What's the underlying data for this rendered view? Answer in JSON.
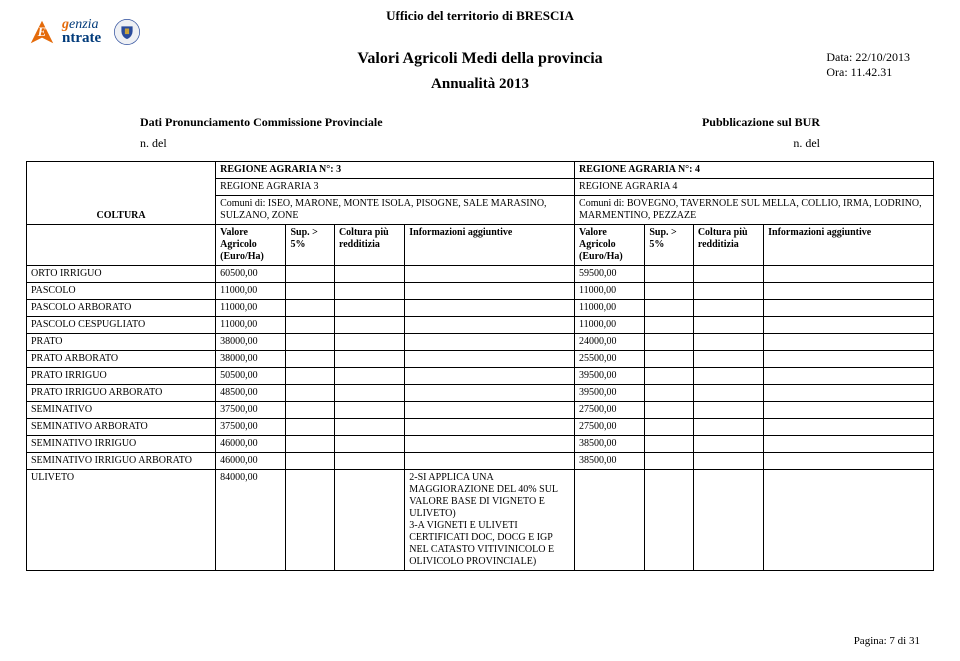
{
  "header": {
    "office": "Ufficio del territorio di  BRESCIA",
    "logo": {
      "line2": "ntrate",
      "prefix_g": "g",
      "prefix_enzia": "enzia",
      "e_icon_letter": "E",
      "alt": "Agenzia Entrate"
    },
    "title": "Valori Agricoli Medi della provincia",
    "date_label": "Data:",
    "date_value": "22/10/2013",
    "time_label": "Ora:",
    "time_value": "11.42.31",
    "subtitle": "Annualità  2013"
  },
  "meta": {
    "left_label": "Dati Pronunciamento Commissione Provinciale",
    "right_label": "Pubblicazione sul BUR",
    "n_del_left": "n. del",
    "n_del_right": "n. del"
  },
  "regions": {
    "left": {
      "num_label": "REGIONE AGRARIA N°:  3",
      "name": "REGIONE AGRARIA 3",
      "comuni": "Comuni di: ISEO, MARONE, MONTE ISOLA, PISOGNE, SALE MARASINO, SULZANO, ZONE"
    },
    "right": {
      "num_label": "REGIONE AGRARIA N°:  4",
      "name": "REGIONE AGRARIA 4",
      "comuni": "Comuni di: BOVEGNO, TAVERNOLE SUL MELLA, COLLIO, IRMA, LODRINO, MARMENTINO, PEZZAZE"
    }
  },
  "columns": {
    "coltura": "COLTURA",
    "valore": "Valore Agricolo (Euro/Ha)",
    "sup": "Sup. > 5%",
    "colt_piu": "Coltura più redditizia",
    "info": "Informazioni aggiuntive"
  },
  "rows": [
    {
      "coltura": "ORTO IRRIGUO",
      "v1": "60500,00",
      "info1": "",
      "v2": "59500,00",
      "info2": ""
    },
    {
      "coltura": "PASCOLO",
      "v1": "11000,00",
      "info1": "",
      "v2": "11000,00",
      "info2": ""
    },
    {
      "coltura": "PASCOLO ARBORATO",
      "v1": "11000,00",
      "info1": "",
      "v2": "11000,00",
      "info2": ""
    },
    {
      "coltura": "PASCOLO CESPUGLIATO",
      "v1": "11000,00",
      "info1": "",
      "v2": "11000,00",
      "info2": ""
    },
    {
      "coltura": "PRATO",
      "v1": "38000,00",
      "info1": "",
      "v2": "24000,00",
      "info2": ""
    },
    {
      "coltura": "PRATO ARBORATO",
      "v1": "38000,00",
      "info1": "",
      "v2": "25500,00",
      "info2": ""
    },
    {
      "coltura": "PRATO IRRIGUO",
      "v1": "50500,00",
      "info1": "",
      "v2": "39500,00",
      "info2": ""
    },
    {
      "coltura": "PRATO IRRIGUO ARBORATO",
      "v1": "48500,00",
      "info1": "",
      "v2": "39500,00",
      "info2": ""
    },
    {
      "coltura": "SEMINATIVO",
      "v1": "37500,00",
      "info1": "",
      "v2": "27500,00",
      "info2": ""
    },
    {
      "coltura": "SEMINATIVO ARBORATO",
      "v1": "37500,00",
      "info1": "",
      "v2": "27500,00",
      "info2": ""
    },
    {
      "coltura": "SEMINATIVO IRRIGUO",
      "v1": "46000,00",
      "info1": "",
      "v2": "38500,00",
      "info2": ""
    },
    {
      "coltura": "SEMINATIVO IRRIGUO ARBORATO",
      "v1": "46000,00",
      "info1": "",
      "v2": "38500,00",
      "info2": ""
    },
    {
      "coltura": "ULIVETO",
      "v1": "84000,00",
      "info1": "2-SI APPLICA UNA MAGGIORAZIONE DEL 40% SUL VALORE BASE DI VIGNETO E ULIVETO)\n3-A VIGNETI E ULIVETI CERTIFICATI DOC, DOCG E IGP NEL CATASTO VITIVINICOLO E OLIVICOLO PROVINCIALE)",
      "v2": "",
      "info2": ""
    }
  ],
  "footer": {
    "page_label": "Pagina: 7 di 31"
  },
  "style": {
    "logo_orange": "#e46a0a",
    "logo_blue": "#003a7a",
    "crest_blue": "#2a4b9b",
    "crest_gold": "#c8a23a",
    "border": "#000000",
    "bg": "#ffffff"
  }
}
